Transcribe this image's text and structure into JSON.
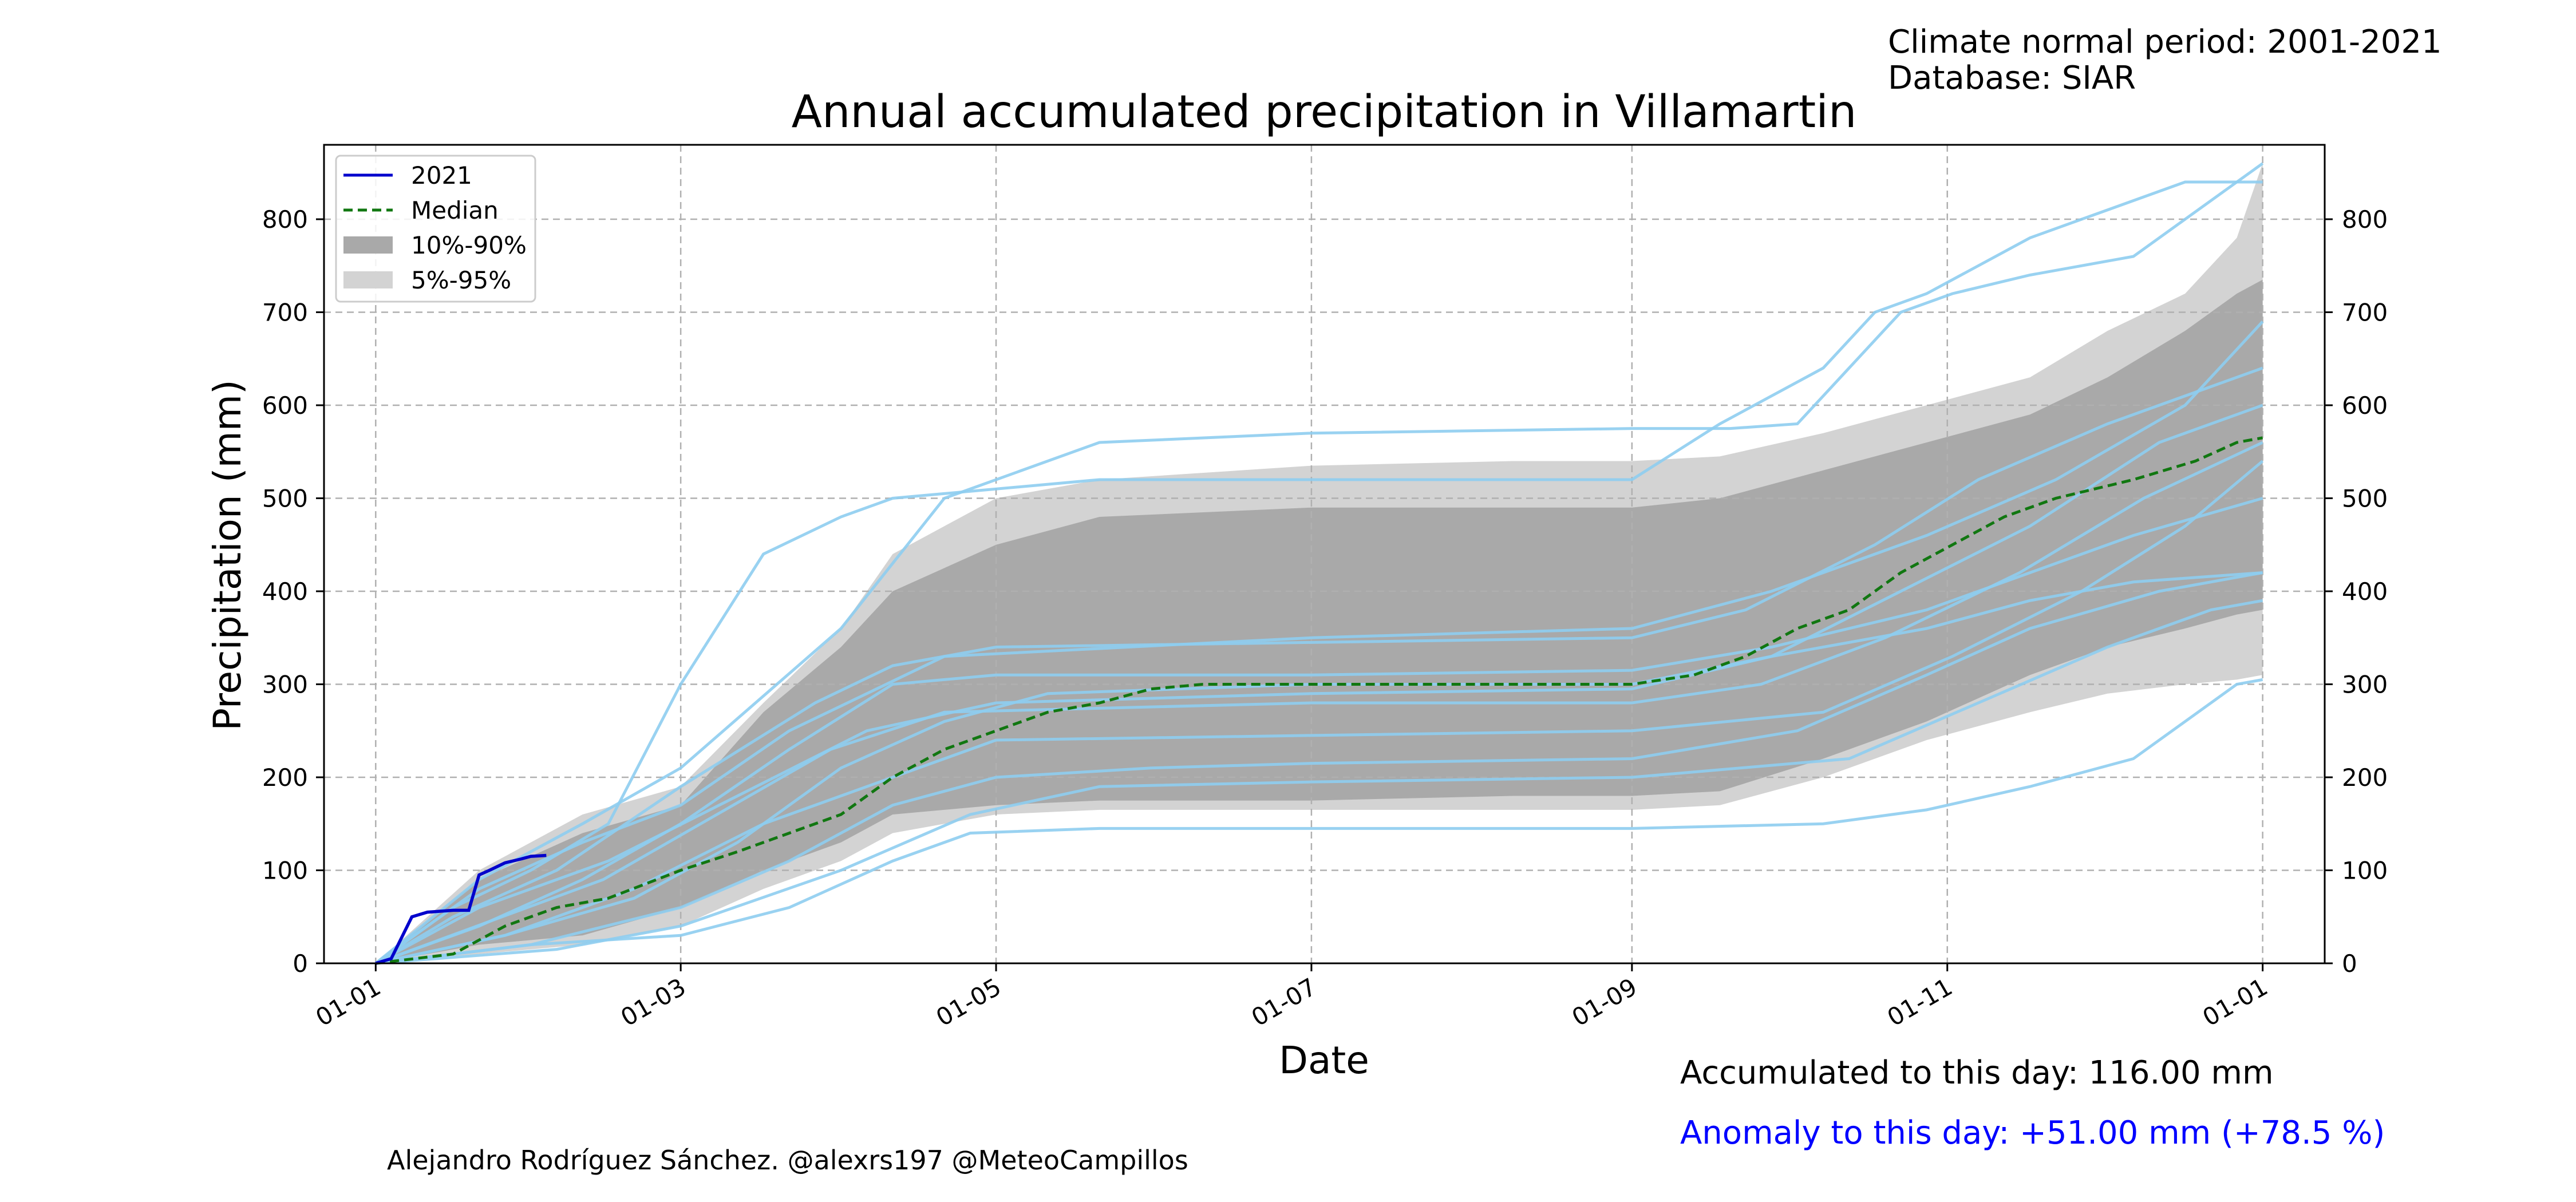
{
  "header": {
    "normal_period": "Climate normal period: 2001-2021",
    "database": "Database: SIAR"
  },
  "stats": {
    "accumulated": "Accumulated to this day: 116.00 mm",
    "anomaly": "Anomaly to this day: +51.00 mm (+78.5 %)"
  },
  "credit": "Alejandro Rodríguez Sánchez. @alexrs197 @MeteoCampillos",
  "colors": {
    "current": "#0000cc",
    "median": "#117711",
    "band_10_90": "#a9a9a9",
    "band_5_95": "#d3d3d3",
    "years": "#8ecdf0",
    "anomaly_text": "#0000ff"
  },
  "chart_data": {
    "type": "line",
    "title": "Annual accumulated precipitation in Villamartin",
    "xlabel": "Date",
    "ylabel": "Precipitation (mm)",
    "x_unit": "day of year",
    "xlim": [
      -10,
      377
    ],
    "ylim": [
      0,
      880
    ],
    "x_ticks": [
      {
        "day": 0,
        "label": "01-01"
      },
      {
        "day": 59,
        "label": "01-03"
      },
      {
        "day": 120,
        "label": "01-05"
      },
      {
        "day": 181,
        "label": "01-07"
      },
      {
        "day": 243,
        "label": "01-09"
      },
      {
        "day": 304,
        "label": "01-11"
      },
      {
        "day": 365,
        "label": "01-01"
      }
    ],
    "y_ticks": [
      0,
      100,
      200,
      300,
      400,
      500,
      600,
      700,
      800
    ],
    "grid": true,
    "legend_position": "top-left",
    "legend": [
      {
        "label": "2021",
        "kind": "line"
      },
      {
        "label": "Median",
        "kind": "dashed"
      },
      {
        "label": "10%-90%",
        "kind": "patch-dark"
      },
      {
        "label": "5%-95%",
        "kind": "patch-light"
      }
    ],
    "band_5_95": {
      "x": [
        0,
        20,
        40,
        59,
        75,
        90,
        100,
        120,
        140,
        181,
        220,
        243,
        260,
        280,
        300,
        320,
        335,
        350,
        360,
        365
      ],
      "lower": [
        0,
        10,
        20,
        40,
        80,
        110,
        140,
        160,
        165,
        165,
        165,
        165,
        170,
        200,
        240,
        270,
        290,
        300,
        305,
        310
      ],
      "upper": [
        0,
        100,
        160,
        190,
        280,
        360,
        440,
        500,
        520,
        535,
        540,
        540,
        545,
        570,
        600,
        630,
        680,
        720,
        780,
        860
      ]
    },
    "band_10_90": {
      "x": [
        0,
        20,
        40,
        59,
        75,
        90,
        100,
        120,
        140,
        181,
        220,
        243,
        260,
        280,
        300,
        320,
        335,
        350,
        360,
        365
      ],
      "lower": [
        0,
        20,
        30,
        60,
        100,
        130,
        160,
        170,
        175,
        175,
        180,
        180,
        185,
        220,
        260,
        310,
        340,
        360,
        375,
        380
      ],
      "upper": [
        0,
        90,
        140,
        170,
        270,
        340,
        400,
        450,
        480,
        490,
        490,
        490,
        500,
        530,
        560,
        590,
        630,
        680,
        720,
        735
      ]
    },
    "median": {
      "x": [
        0,
        15,
        25,
        35,
        45,
        59,
        70,
        80,
        90,
        100,
        110,
        120,
        130,
        140,
        150,
        160,
        181,
        220,
        243,
        255,
        265,
        275,
        285,
        295,
        305,
        315,
        325,
        340,
        352,
        360,
        365
      ],
      "values": [
        0,
        10,
        40,
        60,
        70,
        100,
        120,
        140,
        160,
        200,
        230,
        250,
        270,
        280,
        295,
        300,
        300,
        300,
        300,
        310,
        330,
        360,
        380,
        420,
        450,
        480,
        500,
        520,
        540,
        560,
        565
      ]
    },
    "series": [
      {
        "name": "2021",
        "x": [
          0,
          3,
          7,
          10,
          15,
          18,
          20,
          22,
          25,
          28,
          30,
          33
        ],
        "values": [
          0,
          5,
          50,
          55,
          57,
          57,
          95,
          100,
          108,
          112,
          115,
          116
        ]
      }
    ],
    "year_lines": [
      {
        "x": [
          0,
          15,
          30,
          45,
          59,
          75,
          90,
          100,
          140,
          181,
          243,
          260,
          280,
          290,
          300,
          320,
          340,
          350,
          360,
          365
        ],
        "values": [
          0,
          60,
          100,
          150,
          300,
          440,
          480,
          500,
          520,
          520,
          520,
          580,
          640,
          700,
          720,
          780,
          820,
          840,
          840,
          840
        ]
      },
      {
        "x": [
          0,
          20,
          40,
          59,
          90,
          110,
          140,
          181,
          243,
          262,
          275,
          285,
          295,
          305,
          320,
          340,
          360,
          365
        ],
        "values": [
          0,
          90,
          150,
          210,
          360,
          500,
          560,
          570,
          575,
          575,
          580,
          640,
          700,
          720,
          740,
          760,
          840,
          860
        ]
      },
      {
        "x": [
          0,
          30,
          59,
          80,
          100,
          115,
          140,
          181,
          243,
          280,
          300,
          320,
          340,
          360,
          365
        ],
        "values": [
          0,
          20,
          30,
          60,
          110,
          140,
          145,
          145,
          145,
          150,
          165,
          190,
          220,
          300,
          305
        ]
      },
      {
        "x": [
          0,
          20,
          40,
          59,
          80,
          100,
          120,
          181,
          243,
          270,
          300,
          320,
          340,
          365
        ],
        "values": [
          0,
          40,
          90,
          150,
          230,
          300,
          310,
          310,
          315,
          340,
          380,
          420,
          460,
          500
        ]
      },
      {
        "x": [
          0,
          25,
          50,
          70,
          90,
          110,
          130,
          181,
          243,
          270,
          300,
          320,
          340,
          365
        ],
        "values": [
          0,
          30,
          70,
          130,
          210,
          260,
          290,
          300,
          300,
          330,
          360,
          390,
          410,
          420
        ]
      },
      {
        "x": [
          0,
          15,
          35,
          59,
          85,
          100,
          120,
          181,
          243,
          265,
          290,
          310,
          335,
          365
        ],
        "values": [
          0,
          50,
          100,
          190,
          280,
          320,
          340,
          345,
          350,
          380,
          450,
          520,
          580,
          640
        ]
      },
      {
        "x": [
          0,
          30,
          59,
          80,
          100,
          120,
          150,
          181,
          243,
          275,
          300,
          320,
          345,
          365
        ],
        "values": [
          0,
          20,
          60,
          110,
          170,
          200,
          210,
          215,
          220,
          250,
          310,
          360,
          400,
          420
        ]
      },
      {
        "x": [
          0,
          20,
          45,
          70,
          95,
          120,
          181,
          243,
          270,
          295,
          320,
          345,
          365
        ],
        "values": [
          0,
          60,
          110,
          180,
          250,
          280,
          290,
          295,
          330,
          400,
          470,
          560,
          600
        ]
      },
      {
        "x": [
          0,
          25,
          50,
          75,
          100,
          120,
          181,
          243,
          280,
          305,
          330,
          350,
          365
        ],
        "values": [
          0,
          30,
          80,
          150,
          200,
          240,
          245,
          250,
          270,
          330,
          400,
          470,
          540
        ]
      },
      {
        "x": [
          0,
          20,
          40,
          59,
          80,
          110,
          181,
          243,
          270,
          300,
          325,
          350,
          365
        ],
        "values": [
          0,
          80,
          130,
          170,
          250,
          330,
          350,
          360,
          400,
          460,
          520,
          600,
          690
        ]
      },
      {
        "x": [
          0,
          35,
          59,
          90,
          115,
          140,
          181,
          243,
          285,
          310,
          335,
          355,
          365
        ],
        "values": [
          0,
          15,
          40,
          100,
          160,
          190,
          195,
          200,
          220,
          280,
          340,
          380,
          390
        ]
      },
      {
        "x": [
          0,
          22,
          44,
          66,
          88,
          110,
          181,
          243,
          268,
          292,
          318,
          342,
          365
        ],
        "values": [
          0,
          45,
          90,
          160,
          230,
          270,
          280,
          280,
          300,
          350,
          420,
          500,
          560
        ]
      }
    ]
  }
}
